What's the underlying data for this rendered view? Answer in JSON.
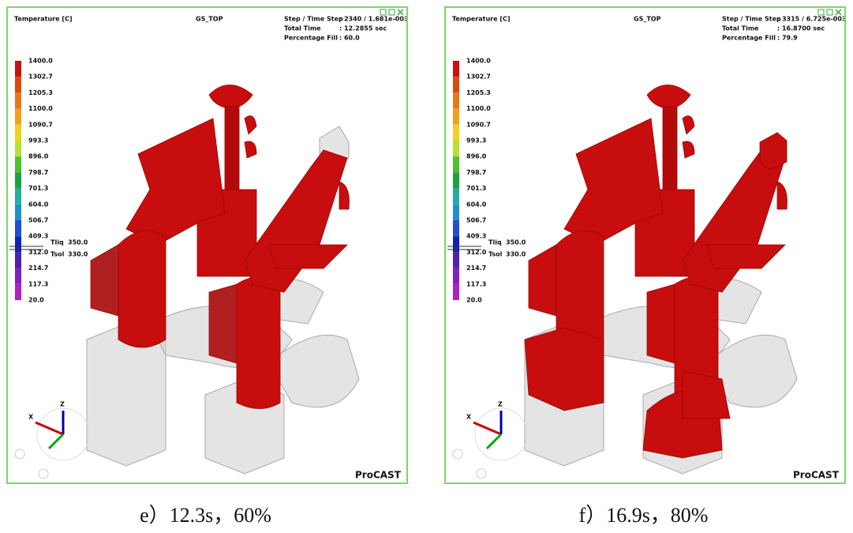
{
  "panels": [
    {
      "title": "Temperature [C]",
      "name": "GS_TOP",
      "info": [
        {
          "label": "Step / Time Step",
          "value": ": 2340 / 1.681e-003"
        },
        {
          "label": "Total   Time",
          "value": ": 12.2855 sec"
        },
        {
          "label": "Percentage Fill",
          "value": ": 60.0"
        }
      ],
      "scale": [
        "1400.0",
        "1302.7",
        "1205.3",
        "1100.0",
        "1090.7",
        "993.3",
        "896.0",
        "798.7",
        "701.3",
        "604.0",
        "506.7",
        "409.3",
        "312.0",
        "214.7",
        "117.3",
        "20.0"
      ],
      "markers": [
        {
          "label": "Tliq",
          "value": "350.0"
        },
        {
          "label": "Tsol",
          "value": "330.0"
        }
      ],
      "axes": [
        "X",
        "Z"
      ],
      "brand": "ProCAST",
      "caption": "e）12.3s，60%"
    },
    {
      "title": "Temperature [C]",
      "name": "GS_TOP",
      "info": [
        {
          "label": "Step / Time Step",
          "value": ": 3315 / 6.725e-003"
        },
        {
          "label": "Total   Time",
          "value": ": 16.8700 sec"
        },
        {
          "label": "Percentage Fill",
          "value": ": 79.9"
        }
      ],
      "scale": [
        "1400.0",
        "1302.7",
        "1205.3",
        "1100.0",
        "1090.7",
        "993.3",
        "896.0",
        "798.7",
        "701.3",
        "604.0",
        "506.7",
        "409.3",
        "312.0",
        "214.7",
        "117.3",
        "20.0"
      ],
      "markers": [
        {
          "label": "Tliq",
          "value": "350.0"
        },
        {
          "label": "Tsol",
          "value": "330.0"
        }
      ],
      "axes": [
        "X",
        "Z"
      ],
      "brand": "ProCAST",
      "caption": "f）16.9s，80%"
    }
  ]
}
